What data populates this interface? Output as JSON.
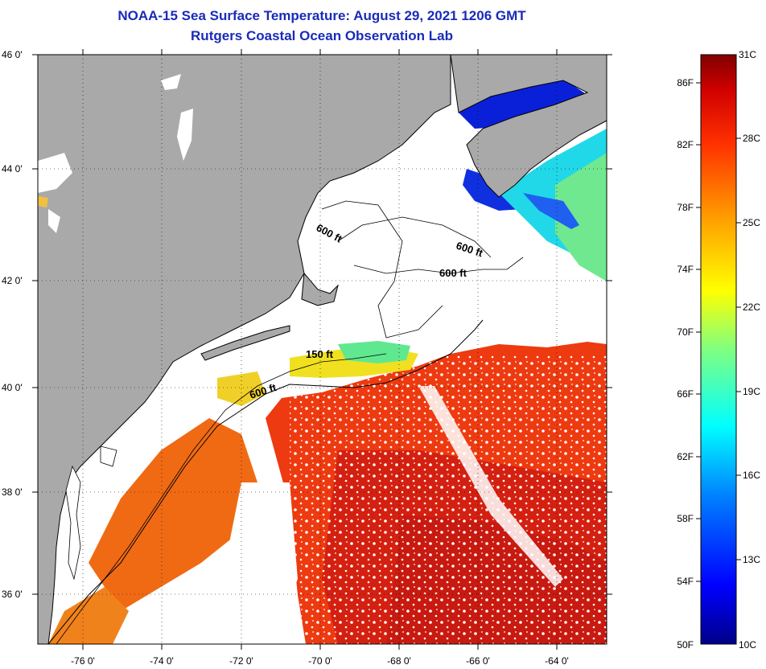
{
  "header": {
    "title": "NOAA-15 Sea Surface Temperature:  August 29, 2021 1206 GMT",
    "subtitle": "Rutgers Coastal Ocean Observation Lab"
  },
  "map": {
    "lat_labels": [
      "46 0'",
      "44 0'",
      "42 0'",
      "40 0'",
      "38 0'",
      "36 0'"
    ],
    "lon_labels": [
      "-76 0'",
      "-74 0'",
      "-72 0'",
      "-70 0'",
      "-68 0'",
      "-66 0'",
      "-64 0'"
    ],
    "contour_labels": [
      "600 ft",
      "600 ft",
      "600 ft",
      "150 ft",
      "600 ft"
    ],
    "colors": {
      "land": "#a9a9a9",
      "cloud": "#ffffff",
      "coast": "#000000"
    }
  },
  "colorbar": {
    "f_labels": [
      "86F",
      "82F",
      "78F",
      "74F",
      "70F",
      "66F",
      "62F",
      "58F",
      "54F",
      "50F"
    ],
    "c_labels": [
      "31C",
      "28C",
      "25C",
      "22C",
      "19C",
      "16C",
      "13C",
      "10C"
    ],
    "min_c": 10,
    "max_c": 31
  }
}
